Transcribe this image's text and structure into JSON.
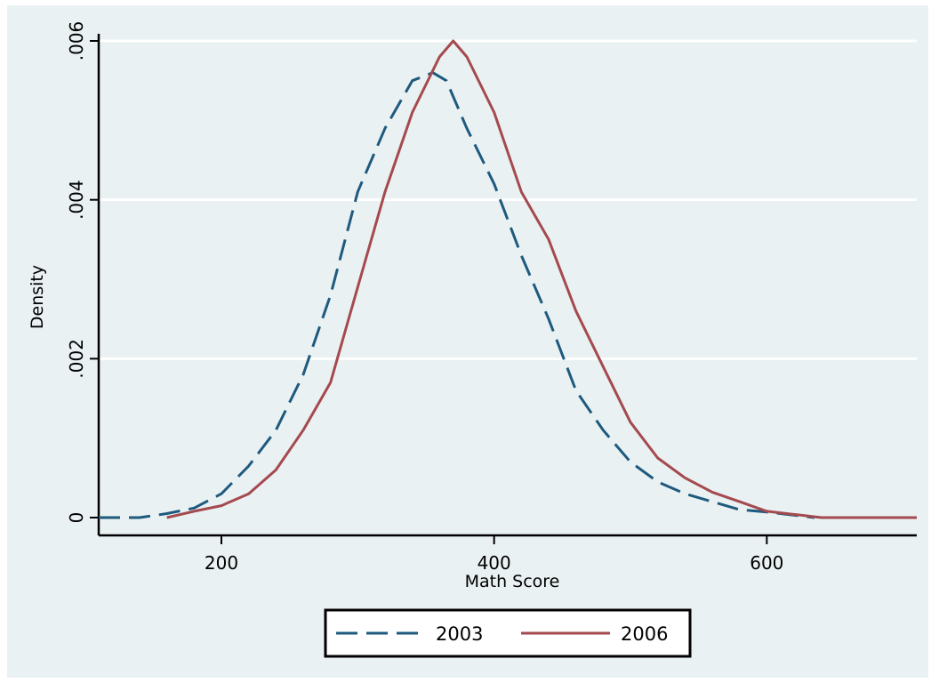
{
  "chart_data": {
    "type": "line",
    "xlabel": "Math Score",
    "ylabel": "Density",
    "xlim": [
      110,
      710
    ],
    "ylim": [
      0,
      0.006
    ],
    "x_ticks": [
      200,
      400,
      600
    ],
    "x_tick_labels": [
      "200",
      "400",
      "600"
    ],
    "y_ticks": [
      0,
      0.002,
      0.004,
      0.006
    ],
    "y_tick_labels": [
      "0",
      ".002",
      ".004",
      ".006"
    ],
    "grid": true,
    "legend_position": "bottom",
    "series": [
      {
        "name": "2003",
        "color": "#1e5a7e",
        "dash": "dashed",
        "points": [
          [
            110,
            0
          ],
          [
            140,
            0
          ],
          [
            160,
            5e-05
          ],
          [
            180,
            0.00012
          ],
          [
            200,
            0.0003
          ],
          [
            220,
            0.00065
          ],
          [
            240,
            0.0011
          ],
          [
            260,
            0.0018
          ],
          [
            280,
            0.0028
          ],
          [
            300,
            0.0041
          ],
          [
            320,
            0.0049
          ],
          [
            340,
            0.0055
          ],
          [
            355,
            0.0056
          ],
          [
            365,
            0.0055
          ],
          [
            380,
            0.0049
          ],
          [
            400,
            0.0042
          ],
          [
            420,
            0.0033
          ],
          [
            440,
            0.0025
          ],
          [
            460,
            0.0016
          ],
          [
            480,
            0.0011
          ],
          [
            500,
            0.0007
          ],
          [
            520,
            0.00045
          ],
          [
            540,
            0.0003
          ],
          [
            560,
            0.0002
          ],
          [
            580,
            0.0001
          ],
          [
            600,
            7e-05
          ],
          [
            620,
            3e-05
          ],
          [
            635,
            0
          ]
        ]
      },
      {
        "name": "2006",
        "color": "#a44a4f",
        "dash": "solid",
        "points": [
          [
            160,
            0
          ],
          [
            180,
            8e-05
          ],
          [
            200,
            0.00015
          ],
          [
            220,
            0.0003
          ],
          [
            240,
            0.0006
          ],
          [
            260,
            0.0011
          ],
          [
            280,
            0.0017
          ],
          [
            300,
            0.0029
          ],
          [
            320,
            0.0041
          ],
          [
            340,
            0.0051
          ],
          [
            360,
            0.0058
          ],
          [
            370,
            0.006
          ],
          [
            380,
            0.0058
          ],
          [
            400,
            0.0051
          ],
          [
            420,
            0.0041
          ],
          [
            440,
            0.0035
          ],
          [
            460,
            0.0026
          ],
          [
            480,
            0.0019
          ],
          [
            500,
            0.0012
          ],
          [
            520,
            0.00075
          ],
          [
            540,
            0.0005
          ],
          [
            560,
            0.00032
          ],
          [
            580,
            0.0002
          ],
          [
            600,
            8e-05
          ],
          [
            625,
            3e-05
          ],
          [
            640,
            0
          ],
          [
            710,
            0
          ]
        ]
      }
    ]
  }
}
